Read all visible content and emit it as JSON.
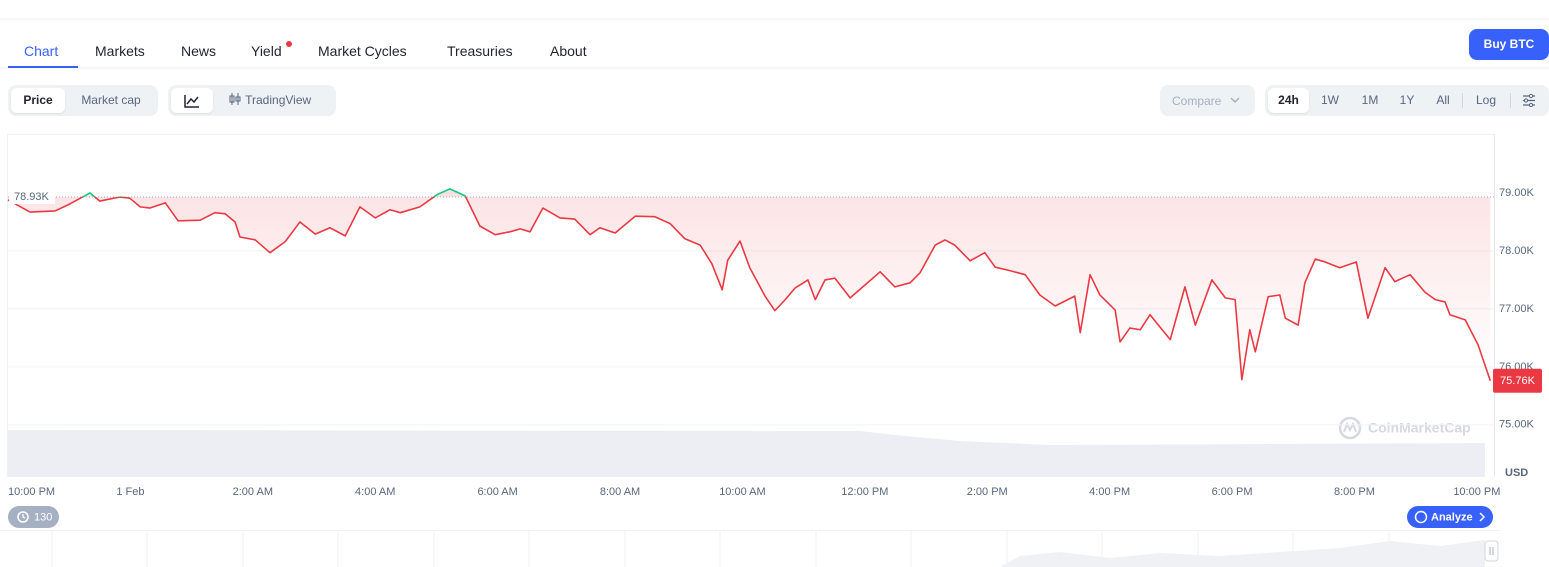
{
  "nav": {
    "tabs": [
      "Chart",
      "Markets",
      "News",
      "Yield",
      "Market Cycles",
      "Treasuries",
      "About"
    ],
    "button": "Buy BTC"
  },
  "toolbar": {
    "metrics": [
      "Price",
      "Market cap"
    ],
    "view": "TradingView",
    "compare": "Compare",
    "ranges": [
      "24h",
      "1W",
      "1M",
      "1Y",
      "All"
    ],
    "scale": "Log"
  },
  "chart_data": {
    "type": "line",
    "x": [
      0,
      0.36,
      0.77,
      1.01,
      1.34,
      1.5,
      1.83,
      1.99,
      2.16,
      2.32,
      2.57,
      2.78,
      3.14,
      3.38,
      3.55,
      3.71,
      3.79,
      4.04,
      4.28,
      4.53,
      4.77,
      5.02,
      5.26,
      5.51,
      5.75,
      6.0,
      6.24,
      6.41,
      6.73,
      7.01,
      7.22,
      7.47,
      7.71,
      7.96,
      8.2,
      8.37,
      8.53,
      8.74,
      9.02,
      9.26,
      9.51,
      9.67,
      9.92,
      10.25,
      10.57,
      10.82,
      11.06,
      11.31,
      11.5,
      11.67,
      11.76,
      11.96,
      12.12,
      12.37,
      12.53,
      12.7,
      12.86,
      13.07,
      13.19,
      13.35,
      13.51,
      13.76,
      14.0,
      14.25,
      14.49,
      14.74,
      14.9,
      15.15,
      15.31,
      15.47,
      15.72,
      15.96,
      16.13,
      16.37,
      16.62,
      16.86,
      17.11,
      17.43,
      17.52,
      17.68,
      17.84,
      18.09,
      18.17,
      18.33,
      18.5,
      18.66,
      18.82,
      18.99,
      19.23,
      19.4,
      19.67,
      19.89,
      20.05,
      20.16,
      20.29,
      20.38,
      20.59,
      20.78,
      20.87,
      21.08,
      21.19,
      21.36,
      21.52,
      21.76,
      22.03,
      22.22,
      22.5,
      22.66,
      22.91,
      23.15,
      23.32,
      23.48,
      23.56,
      23.81,
      24.02,
      24.22
    ],
    "values": [
      78880,
      78670,
      78690,
      78810,
      79000,
      78860,
      78930,
      78910,
      78760,
      78740,
      78830,
      78520,
      78530,
      78660,
      78640,
      78500,
      78240,
      78190,
      77970,
      78160,
      78500,
      78290,
      78400,
      78260,
      78760,
      78570,
      78710,
      78660,
      78760,
      78970,
      79070,
      78950,
      78430,
      78280,
      78330,
      78380,
      78330,
      78740,
      78570,
      78550,
      78280,
      78400,
      78310,
      78600,
      78590,
      78470,
      78210,
      78100,
      77780,
      77330,
      77840,
      78170,
      77710,
      77220,
      76970,
      77160,
      77360,
      77500,
      77160,
      77500,
      77530,
      77190,
      77410,
      77640,
      77380,
      77450,
      77620,
      78100,
      78190,
      78100,
      77830,
      77970,
      77720,
      77660,
      77590,
      77240,
      77050,
      77220,
      76590,
      77590,
      77240,
      76980,
      76430,
      76670,
      76640,
      76900,
      76690,
      76470,
      77380,
      76720,
      77500,
      77190,
      77160,
      75780,
      76640,
      76260,
      77210,
      77240,
      76840,
      76720,
      77450,
      77860,
      77810,
      77710,
      77810,
      76840,
      77710,
      77470,
      77590,
      77290,
      77160,
      77120,
      76900,
      76810,
      76380,
      75760
    ],
    "color": "#ea3943",
    "color_above": "#16c784",
    "xlim": [
      0,
      24.28
    ],
    "xticks": [
      {
        "value": 0,
        "label": "10:00 PM"
      },
      {
        "value": 2,
        "label": "1 Feb"
      },
      {
        "value": 4,
        "label": "2:00 AM"
      },
      {
        "value": 6,
        "label": "4:00 AM"
      },
      {
        "value": 8,
        "label": "6:00 AM"
      },
      {
        "value": 10,
        "label": "8:00 AM"
      },
      {
        "value": 12,
        "label": "10:00 AM"
      },
      {
        "value": 14,
        "label": "12:00 PM"
      },
      {
        "value": 16,
        "label": "2:00 PM"
      },
      {
        "value": 18,
        "label": "4:00 PM"
      },
      {
        "value": 20,
        "label": "6:00 PM"
      },
      {
        "value": 22,
        "label": "8:00 PM"
      },
      {
        "value": 24,
        "label": "10:00 PM"
      }
    ],
    "ylim": [
      74100,
      80000
    ],
    "yticks": [
      {
        "value": 75000,
        "label": "75.00K"
      },
      {
        "value": 76000,
        "label": "76.00K"
      },
      {
        "value": 77000,
        "label": "77.00K"
      },
      {
        "value": 78000,
        "label": "78.00K"
      },
      {
        "value": 79000,
        "label": "79.00K"
      }
    ],
    "grid": true,
    "y_unit": "USD",
    "baseline": {
      "value": 78930,
      "label": "78.93K"
    },
    "last_price": {
      "value": 75760,
      "label": "75.76K"
    },
    "watermark": "CoinMarketCap"
  },
  "footer": {
    "history_count": 130,
    "analyze": "Analyze"
  }
}
